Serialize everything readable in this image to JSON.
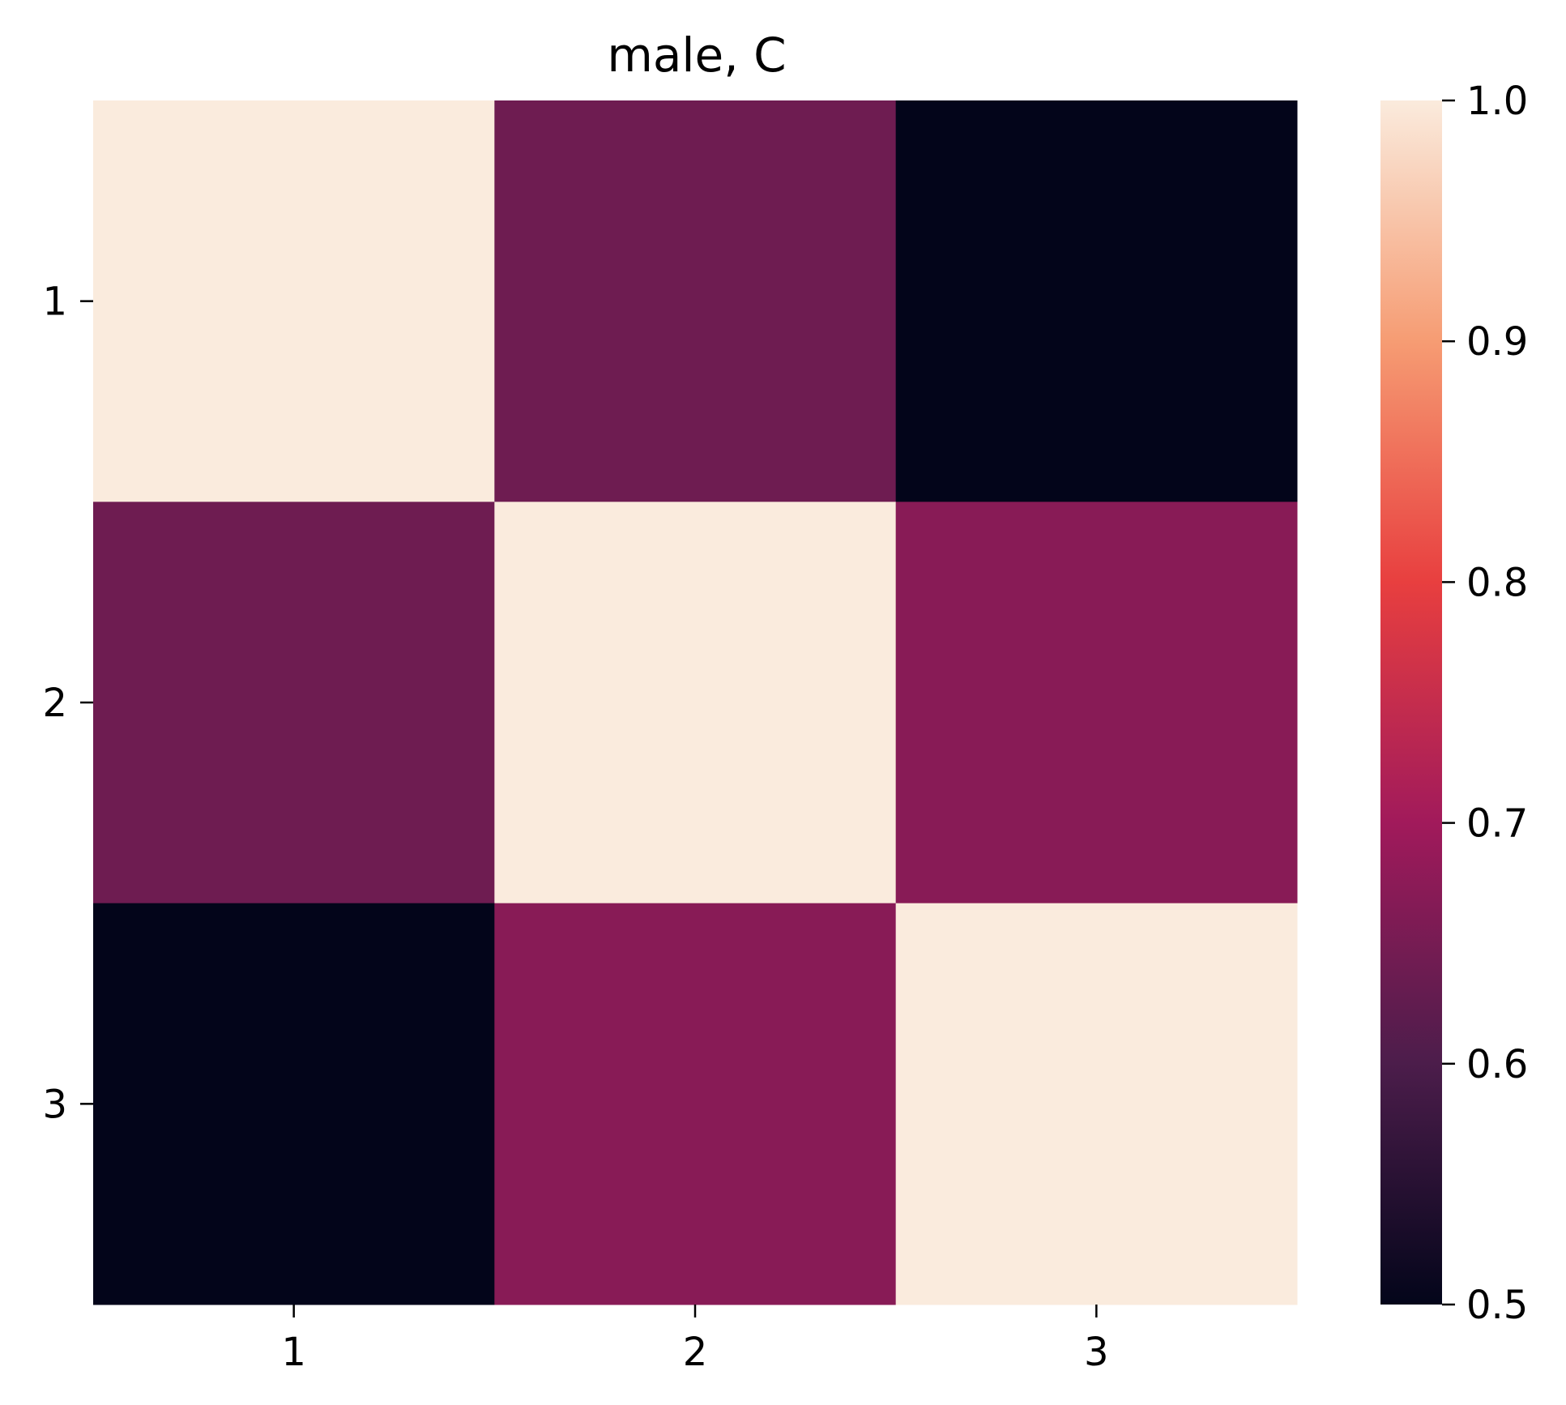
{
  "chart_data": {
    "type": "heatmap",
    "title": "male, C",
    "x_categories": [
      "1",
      "2",
      "3"
    ],
    "y_categories": [
      "1",
      "2",
      "3"
    ],
    "values": [
      [
        1.0,
        0.64,
        0.5
      ],
      [
        0.64,
        1.0,
        0.67
      ],
      [
        0.5,
        0.67,
        1.0
      ]
    ],
    "colorbar": {
      "min": 0.5,
      "max": 1.0,
      "ticks": [
        "0.5",
        "0.6",
        "0.7",
        "0.8",
        "0.9",
        "1.0"
      ],
      "colormap": "rocket",
      "color_stops": [
        "#03051a",
        "#4c1d4b",
        "#a11a5b",
        "#e83f3f",
        "#f69c73",
        "#faebdd"
      ]
    },
    "grid": false,
    "legend": "colorbar-right"
  }
}
